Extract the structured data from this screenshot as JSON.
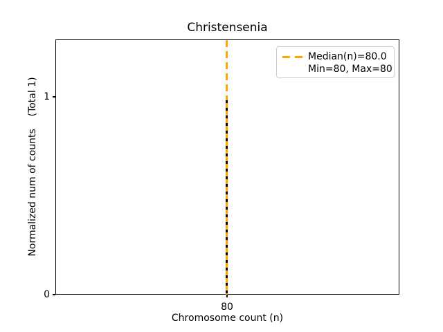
{
  "figure": {
    "title": "Christensenia",
    "xlabel": "Chromosome count (n)",
    "ylabel": "Normalized num of counts    (Total 1)"
  },
  "axis": {
    "yticks": [
      "1",
      "0"
    ],
    "xticks": [
      "80"
    ]
  },
  "legend": {
    "entries": [
      {
        "label": "Median(n)=80.0",
        "marker": "orange-dashed-line"
      },
      {
        "label": "Min=80, Max=80",
        "marker": "none"
      }
    ],
    "position": "upper right"
  },
  "colors": {
    "median_line": "#FFA500",
    "stem_dash": "#000000",
    "legend_border": "#cccccc",
    "text": "#000000",
    "background": "#ffffff"
  },
  "chart_data": {
    "type": "bar",
    "x": [
      80
    ],
    "values": [
      1
    ],
    "title": "Christensenia",
    "xlabel": "Chromosome count (n)",
    "ylabel": "Normalized num of counts    (Total 1)",
    "total_counts": 1,
    "xticks": [
      80
    ],
    "yticks": [
      0,
      1
    ],
    "ylim": [
      0,
      1.29
    ],
    "grid": false,
    "annotations": {
      "median": 80.0,
      "min": 80,
      "max": 80
    },
    "median_line": {
      "x": 80,
      "style": "dashed",
      "color": "#FFA500",
      "label": "Median(n)=80.0"
    },
    "stem_style": {
      "color": "#000000",
      "linestyle": "dashed",
      "over_color": "#FFA500"
    },
    "legend_entries": [
      "Median(n)=80.0",
      "Min=80, Max=80"
    ],
    "legend_position": "upper right"
  }
}
